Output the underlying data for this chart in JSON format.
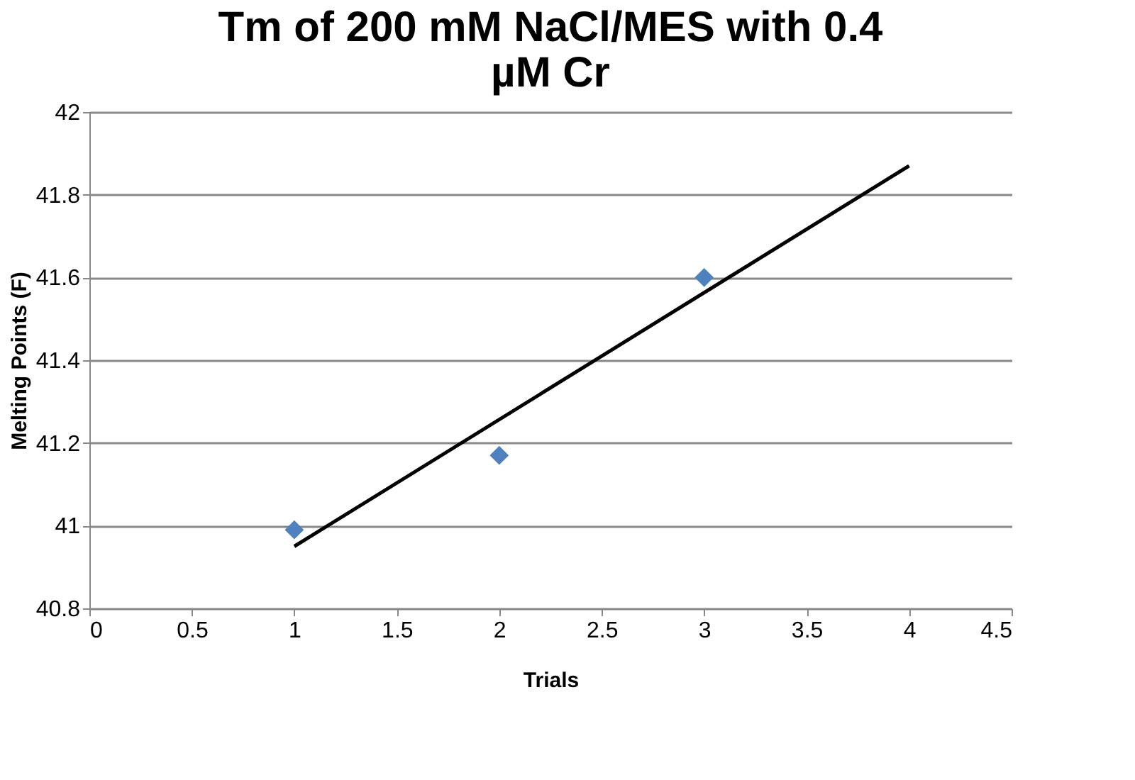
{
  "chart_data": {
    "type": "scatter",
    "title": "Tm of 200 mM NaCl/MES with 0.4 µM Cr",
    "xlabel": "Trials",
    "ylabel": "Melting Points (F)",
    "series": [
      {
        "color": "#4f81bd",
        "x": [
          1,
          2,
          3
        ],
        "values": [
          40.99,
          41.17,
          41.6
        ],
        "marker": "diamond"
      },
      {
        "type": "line",
        "color": "#000000",
        "x": [
          1,
          4
        ],
        "values": [
          40.95,
          41.87
        ],
        "marker": "none",
        "line_style": "solid"
      }
    ],
    "xlim": [
      0,
      4.5
    ],
    "xticks": [
      0,
      0.5,
      1,
      1.5,
      2,
      2.5,
      3,
      3.5,
      4,
      4.5
    ],
    "ylim": [
      40.8,
      42
    ],
    "yticks": [
      40.8,
      41,
      41.2,
      41.4,
      41.6,
      41.8,
      42
    ],
    "grid": "y"
  }
}
